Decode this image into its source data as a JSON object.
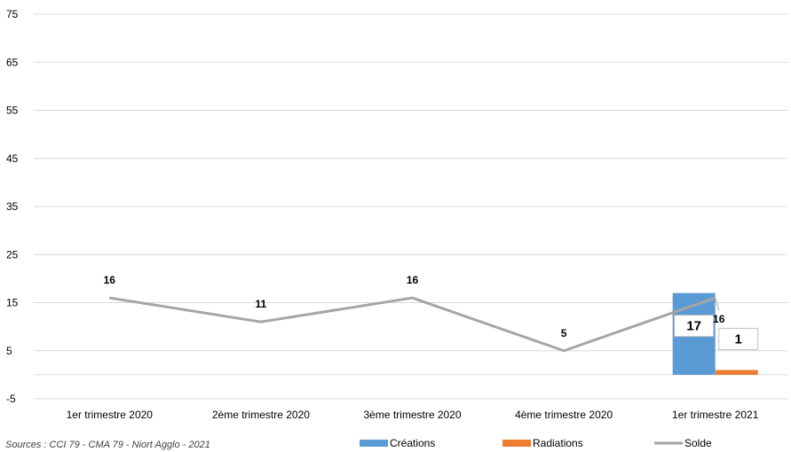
{
  "chart_data": {
    "type": "bar",
    "categories": [
      "1er trimestre 2020",
      "2ème trimestre 2020",
      "3ème trimestre 2020",
      "4ème trimestre 2020",
      "1er trimestre 2021"
    ],
    "series": [
      {
        "name": "Créations",
        "kind": "bar",
        "values": [
          null,
          null,
          null,
          null,
          17
        ],
        "color": "#5B9BD5",
        "labels": [
          "",
          "",
          "",
          "",
          "17"
        ]
      },
      {
        "name": "Radiations",
        "kind": "bar",
        "values": [
          null,
          null,
          null,
          null,
          1
        ],
        "color": "#ED7D31",
        "labels": [
          "",
          "",
          "",
          "",
          "1"
        ]
      },
      {
        "name": "Solde",
        "kind": "line",
        "values": [
          16,
          11,
          16,
          5,
          16
        ],
        "color": "#A5A5A5",
        "labels": [
          "16",
          "11",
          "16",
          "5",
          "16"
        ]
      }
    ],
    "yticks": [
      "75",
      "65",
      "55",
      "45",
      "35",
      "25",
      "15",
      "5",
      "-5"
    ],
    "ylim": [
      -5,
      75
    ],
    "grid": true,
    "legend_position": "bottom"
  },
  "source_note": "Sources : CCI 79 - CMA 79 - Niort Agglo - 2021"
}
